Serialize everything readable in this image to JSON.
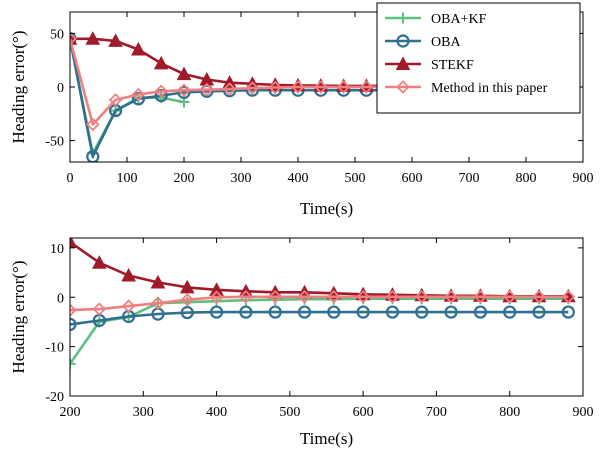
{
  "chart_data": [
    {
      "type": "line",
      "xlabel": "Time(s)",
      "ylabel": "Heading error(°)",
      "xlim": [
        0,
        900
      ],
      "ylim": [
        -70,
        70
      ],
      "xticks": [
        "0",
        "100",
        "200",
        "300",
        "400",
        "500",
        "600",
        "700",
        "800",
        "900"
      ],
      "yticks": [
        "-50",
        "0",
        "50"
      ],
      "grid": false,
      "legend": "top-right",
      "series": [
        {
          "name": "OBA+KF",
          "color": "#5fbf7f",
          "marker": "plus",
          "x": [
            0,
            40,
            80,
            120,
            160,
            200
          ],
          "y": [
            45,
            -62,
            -22,
            -10,
            -10,
            -14
          ]
        },
        {
          "name": "OBA",
          "color": "#2f6f8f",
          "marker": "circle",
          "x": [
            0,
            40,
            80,
            120,
            160,
            200,
            240,
            280,
            320,
            360,
            400,
            440,
            480,
            520,
            560,
            600,
            640,
            680,
            720,
            760,
            800,
            840,
            880
          ],
          "y": [
            45,
            -65,
            -22,
            -11,
            -8,
            -5,
            -4,
            -3.5,
            -3,
            -3,
            -3,
            -3,
            -3,
            -3,
            -3,
            -3,
            -3,
            -3,
            -3,
            -3,
            -3,
            -3,
            -3
          ]
        },
        {
          "name": "STEKF",
          "color": "#a01a2a",
          "marker": "triangle",
          "x": [
            0,
            40,
            80,
            120,
            160,
            200,
            240,
            280,
            320,
            360,
            400,
            440,
            480,
            520,
            560,
            600,
            640,
            680,
            720,
            760,
            800,
            840,
            880
          ],
          "y": [
            45,
            45,
            43,
            35,
            22,
            12,
            7,
            4,
            3,
            2,
            1.5,
            1.2,
            1,
            1,
            0.8,
            0.5,
            0.5,
            0.5,
            0.5,
            0.5,
            0.5,
            0.5,
            0.5
          ]
        },
        {
          "name": "Method in this paper",
          "color": "#f08080",
          "marker": "diamond",
          "x": [
            0,
            40,
            80,
            120,
            160,
            200,
            240,
            280,
            320,
            360,
            400,
            440,
            480,
            520,
            560,
            600,
            640,
            680,
            720,
            760,
            800,
            840,
            880
          ],
          "y": [
            45,
            -35,
            -12,
            -7,
            -4,
            -3,
            -2.5,
            -2,
            -1,
            -0.5,
            0,
            0,
            0,
            0,
            0,
            0,
            0,
            0,
            0,
            0,
            0,
            0,
            0
          ]
        }
      ]
    },
    {
      "type": "line",
      "xlabel": "Time(s)",
      "ylabel": "Heading error(°)",
      "xlim": [
        200,
        900
      ],
      "ylim": [
        -20,
        12
      ],
      "xticks": [
        "200",
        "300",
        "400",
        "500",
        "600",
        "700",
        "800",
        "900"
      ],
      "yticks": [
        "-20",
        "-10",
        "0",
        "10"
      ],
      "grid": false,
      "series": [
        {
          "name": "OBA+KF",
          "color": "#5fbf7f",
          "marker": "plus",
          "x": [
            200,
            240,
            280,
            320,
            360,
            400,
            440,
            480,
            520,
            560,
            600,
            640,
            680,
            720,
            760,
            800,
            840,
            880
          ],
          "y": [
            -13.5,
            -5,
            -4,
            -1.2,
            -1,
            -0.8,
            -0.6,
            -0.5,
            -0.4,
            -0.4,
            -0.3,
            -0.3,
            -0.3,
            -0.3,
            -0.3,
            -0.3,
            -0.3,
            -0.3
          ]
        },
        {
          "name": "OBA",
          "color": "#2f6f8f",
          "marker": "circle",
          "x": [
            200,
            240,
            280,
            320,
            360,
            400,
            440,
            480,
            520,
            560,
            600,
            640,
            680,
            720,
            760,
            800,
            840,
            880
          ],
          "y": [
            -5.5,
            -4.7,
            -3.9,
            -3.4,
            -3.1,
            -3,
            -3,
            -3,
            -3,
            -3,
            -3,
            -3,
            -3,
            -3,
            -3,
            -3,
            -3,
            -3
          ]
        },
        {
          "name": "STEKF",
          "color": "#a01a2a",
          "marker": "triangle",
          "x": [
            200,
            240,
            280,
            320,
            360,
            400,
            440,
            480,
            520,
            560,
            600,
            640,
            680,
            720,
            760,
            800,
            840,
            880
          ],
          "y": [
            11.2,
            7,
            4.4,
            3,
            2,
            1.5,
            1.2,
            1,
            1,
            0.8,
            0.6,
            0.5,
            0.4,
            0.3,
            0.3,
            0.2,
            0.2,
            0.2
          ]
        },
        {
          "name": "Method in this paper",
          "color": "#f08080",
          "marker": "diamond",
          "x": [
            200,
            240,
            280,
            320,
            360,
            400,
            440,
            480,
            520,
            560,
            600,
            640,
            680,
            720,
            760,
            800,
            840,
            880
          ],
          "y": [
            -2.6,
            -2.4,
            -1.8,
            -1.2,
            -0.5,
            0,
            0.1,
            0.1,
            0.1,
            0.1,
            0.1,
            0.1,
            0.1,
            0.1,
            0.1,
            0.1,
            0.1,
            0.1
          ]
        }
      ]
    }
  ]
}
